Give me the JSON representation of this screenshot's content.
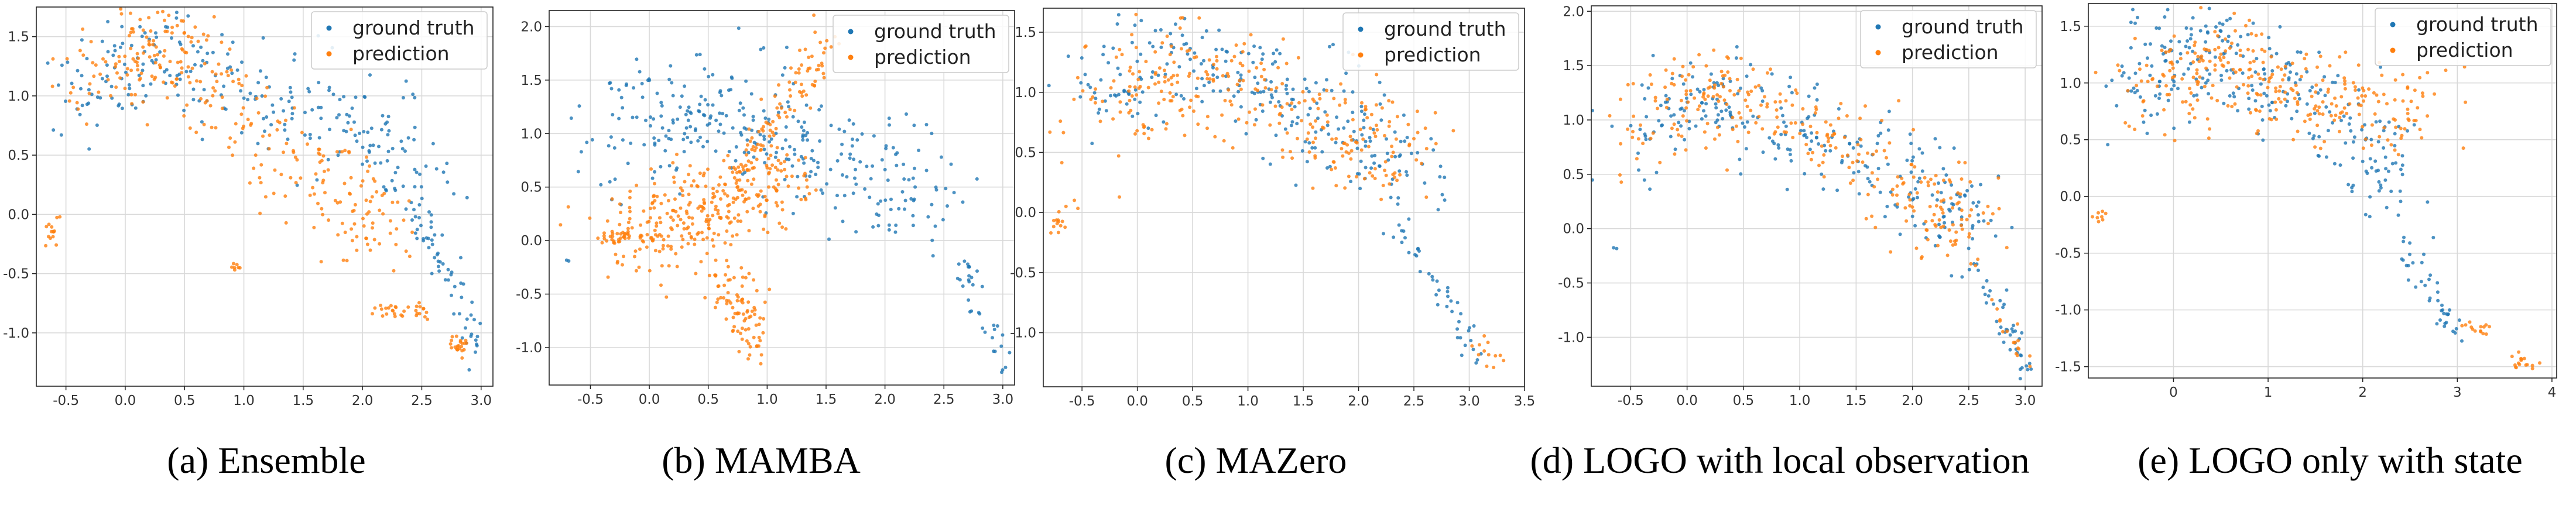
{
  "colors": {
    "ground_truth": "#1f77b4",
    "prediction": "#ff7f0e",
    "grid": "#d9d9d9",
    "axis": "#222222"
  },
  "chart_data": [
    {
      "type": "scatter",
      "caption": "(a) Ensemble",
      "xlim": [
        -0.75,
        3.1
      ],
      "ylim": [
        -1.45,
        1.75
      ],
      "xticks": [
        "-0.5",
        "0.0",
        "0.5",
        "1.0",
        "1.5",
        "2.0",
        "2.5",
        "3.0"
      ],
      "yticks": [
        "-1.0",
        "-0.5",
        "0.0",
        "0.5",
        "1.0",
        "1.5"
      ],
      "legend": {
        "entries": [
          "ground truth",
          "prediction"
        ],
        "position": "top-right"
      },
      "series": [
        {
          "name": "ground truth",
          "clusters": [
            {
              "x": [
                -0.5,
                0.0,
                0.4,
                0.9,
                1.4,
                1.9,
                2.3,
                2.5
              ],
              "y": [
                0.95,
                1.2,
                1.3,
                1.1,
                0.9,
                0.7,
                0.5,
                0.3
              ],
              "n": 260,
              "spread": [
                0.22,
                0.24
              ]
            },
            {
              "x": [
                2.45,
                2.7,
                2.85,
                3.0
              ],
              "y": [
                0.1,
                -0.4,
                -0.8,
                -1.25
              ],
              "n": 45,
              "spread": [
                0.05,
                0.06
              ]
            },
            {
              "x": [
                2.5,
                2.8
              ],
              "y": [
                -0.15,
                -0.65
              ],
              "n": 12,
              "spread": [
                0.04,
                0.04
              ]
            }
          ]
        },
        {
          "name": "prediction",
          "clusters": [
            {
              "x": [
                -0.3,
                0.1,
                0.4,
                0.8,
                1.3,
                1.8,
                2.2
              ],
              "y": [
                1.05,
                1.4,
                1.45,
                1.05,
                0.55,
                0.15,
                -0.2
              ],
              "n": 300,
              "spread": [
                0.2,
                0.22
              ]
            },
            {
              "x": [
                -0.65,
                -0.55
              ],
              "y": [
                -0.2,
                -0.1
              ],
              "n": 14,
              "spread": [
                0.03,
                0.05
              ]
            },
            {
              "x": [
                0.9,
                0.95
              ],
              "y": [
                -0.44,
                -0.46
              ],
              "n": 7,
              "spread": [
                0.03,
                0.02
              ]
            },
            {
              "x": [
                2.1,
                2.3,
                2.55
              ],
              "y": [
                -0.8,
                -0.83,
                -0.83
              ],
              "n": 30,
              "spread": [
                0.05,
                0.03
              ]
            },
            {
              "x": [
                2.75,
                2.85
              ],
              "y": [
                -1.05,
                -1.15
              ],
              "n": 22,
              "spread": [
                0.04,
                0.04
              ]
            }
          ]
        }
      ]
    },
    {
      "type": "scatter",
      "caption": "(b) MAMBA",
      "xlim": [
        -0.85,
        3.1
      ],
      "ylim": [
        -1.35,
        2.15
      ],
      "xticks": [
        "-0.5",
        "0.0",
        "0.5",
        "1.0",
        "1.5",
        "2.0",
        "2.5",
        "3.0"
      ],
      "yticks": [
        "-1.0",
        "-0.5",
        "0.0",
        "0.5",
        "1.0",
        "1.5",
        "2.0"
      ],
      "legend": {
        "entries": [
          "ground truth",
          "prediction"
        ],
        "position": "top-right"
      },
      "series": [
        {
          "name": "ground truth",
          "clusters": [
            {
              "x": [
                -0.4,
                0.1,
                0.5,
                1.0,
                1.6,
                2.1,
                2.5
              ],
              "y": [
                0.85,
                1.1,
                1.2,
                1.0,
                0.7,
                0.45,
                0.3
              ],
              "n": 320,
              "spread": [
                0.22,
                0.28
              ]
            },
            {
              "x": [
                2.6,
                2.8,
                3.0
              ],
              "y": [
                -0.1,
                -0.6,
                -1.2
              ],
              "n": 35,
              "spread": [
                0.05,
                0.07
              ]
            },
            {
              "x": [
                -0.7
              ],
              "y": [
                -0.2
              ],
              "n": 2,
              "spread": [
                0.02,
                0.02
              ]
            }
          ]
        },
        {
          "name": "prediction",
          "clusters": [
            {
              "x": [
                -0.3,
                0.1,
                0.5,
                0.8,
                1.1
              ],
              "y": [
                0.0,
                0.2,
                0.35,
                0.5,
                0.6
              ],
              "n": 320,
              "spread": [
                0.2,
                0.22
              ]
            },
            {
              "x": [
                0.8,
                1.1,
                1.3,
                1.5
              ],
              "y": [
                0.7,
                1.1,
                1.5,
                1.9
              ],
              "n": 80,
              "spread": [
                0.08,
                0.1
              ]
            },
            {
              "x": [
                0.6,
                0.8,
                0.9
              ],
              "y": [
                -0.3,
                -0.6,
                -1.0
              ],
              "n": 90,
              "spread": [
                0.1,
                0.12
              ]
            },
            {
              "x": [
                -0.4,
                -0.2
              ],
              "y": [
                0.0,
                0.05
              ],
              "n": 25,
              "spread": [
                0.06,
                0.03
              ]
            }
          ]
        }
      ]
    },
    {
      "type": "scatter",
      "caption": "(c) MAZero",
      "xlim": [
        -0.85,
        3.5
      ],
      "ylim": [
        -1.45,
        1.7
      ],
      "xticks": [
        "-0.5",
        "0.0",
        "0.5",
        "1.0",
        "1.5",
        "2.0",
        "2.5",
        "3.0",
        "3.5"
      ],
      "yticks": [
        "-1.0",
        "-0.5",
        "0.0",
        "0.5",
        "1.0",
        "1.5"
      ],
      "legend": {
        "entries": [
          "ground truth",
          "prediction"
        ],
        "position": "top-right"
      },
      "series": [
        {
          "name": "ground truth",
          "clusters": [
            {
              "x": [
                -0.5,
                0.0,
                0.3,
                0.8,
                1.3,
                1.8,
                2.2,
                2.4
              ],
              "y": [
                0.85,
                1.2,
                1.35,
                1.1,
                0.95,
                0.75,
                0.55,
                0.3
              ],
              "n": 270,
              "spread": [
                0.22,
                0.25
              ]
            },
            {
              "x": [
                2.4,
                2.7,
                2.9,
                3.1
              ],
              "y": [
                -0.2,
                -0.55,
                -0.9,
                -1.3
              ],
              "n": 40,
              "spread": [
                0.05,
                0.07
              ]
            }
          ]
        },
        {
          "name": "prediction",
          "clusters": [
            {
              "x": [
                -0.4,
                0.0,
                0.3,
                0.8,
                1.3,
                1.8,
                2.2,
                2.4
              ],
              "y": [
                0.8,
                1.1,
                1.2,
                1.05,
                0.9,
                0.75,
                0.6,
                0.5
              ],
              "n": 290,
              "spread": [
                0.22,
                0.24
              ]
            },
            {
              "x": [
                -0.75,
                -0.7,
                -0.6
              ],
              "y": [
                -0.2,
                -0.05,
                0.1
              ],
              "n": 15,
              "spread": [
                0.03,
                0.05
              ]
            },
            {
              "x": [
                3.0,
                3.3
              ],
              "y": [
                -1.0,
                -1.3
              ],
              "n": 12,
              "spread": [
                0.04,
                0.06
              ]
            }
          ]
        }
      ]
    },
    {
      "type": "scatter",
      "caption": "(d) LOGO with local observation",
      "xlim": [
        -0.85,
        3.15
      ],
      "ylim": [
        -1.45,
        2.05
      ],
      "xticks": [
        "-0.5",
        "0.0",
        "0.5",
        "1.0",
        "1.5",
        "2.0",
        "2.5",
        "3.0"
      ],
      "yticks": [
        "-1.0",
        "-0.5",
        "0.0",
        "0.5",
        "1.0",
        "1.5",
        "2.0"
      ],
      "legend": {
        "entries": [
          "ground truth",
          "prediction"
        ],
        "position": "top-right"
      },
      "series": [
        {
          "name": "ground truth",
          "clusters": [
            {
              "x": [
                -0.5,
                0.0,
                0.4,
                0.9,
                1.4,
                1.9,
                2.3,
                2.5
              ],
              "y": [
                0.75,
                1.1,
                1.2,
                1.0,
                0.75,
                0.5,
                0.25,
                0.05
              ],
              "n": 270,
              "spread": [
                0.22,
                0.23
              ]
            },
            {
              "x": [
                2.5,
                2.7,
                2.9,
                3.0
              ],
              "y": [
                -0.2,
                -0.6,
                -1.0,
                -1.3
              ],
              "n": 40,
              "spread": [
                0.05,
                0.07
              ]
            },
            {
              "x": [
                -0.65
              ],
              "y": [
                -0.18
              ],
              "n": 2,
              "spread": [
                0.01,
                0.01
              ]
            }
          ]
        },
        {
          "name": "prediction",
          "clusters": [
            {
              "x": [
                -0.4,
                0.0,
                0.3,
                0.8,
                1.3,
                1.8,
                2.2,
                2.5
              ],
              "y": [
                0.8,
                1.15,
                1.3,
                1.05,
                0.8,
                0.5,
                0.2,
                -0.1
              ],
              "n": 290,
              "spread": [
                0.21,
                0.22
              ]
            },
            {
              "x": [
                2.7,
                2.9,
                3.0
              ],
              "y": [
                -0.7,
                -1.0,
                -1.2
              ],
              "n": 16,
              "spread": [
                0.04,
                0.06
              ]
            }
          ]
        }
      ]
    },
    {
      "type": "scatter",
      "caption": "(e) LOGO only with state",
      "xlim": [
        -0.9,
        4.05
      ],
      "ylim": [
        -1.6,
        1.7
      ],
      "xticks": [
        "0",
        "1",
        "2",
        "3",
        "4"
      ],
      "yticks": [
        "-1.5",
        "-1.0",
        "-0.5",
        "0.0",
        "0.5",
        "1.0",
        "1.5"
      ],
      "legend": {
        "entries": [
          "ground truth",
          "prediction"
        ],
        "position": "top-right"
      },
      "series": [
        {
          "name": "ground truth",
          "clusters": [
            {
              "x": [
                -0.5,
                0.0,
                0.3,
                0.8,
                1.3,
                1.8,
                2.2,
                2.5
              ],
              "y": [
                0.85,
                1.2,
                1.35,
                1.05,
                0.85,
                0.6,
                0.35,
                0.1
              ],
              "n": 270,
              "spread": [
                0.25,
                0.24
              ]
            },
            {
              "x": [
                2.4,
                2.6,
                2.8,
                3.0
              ],
              "y": [
                -0.4,
                -0.7,
                -1.0,
                -1.25
              ],
              "n": 40,
              "spread": [
                0.06,
                0.06
              ]
            }
          ]
        },
        {
          "name": "prediction",
          "clusters": [
            {
              "x": [
                -0.3,
                0.2,
                0.6,
                1.1,
                1.6,
                2.1,
                2.5
              ],
              "y": [
                0.8,
                1.2,
                1.15,
                0.95,
                0.85,
                0.8,
                0.75
              ],
              "n": 290,
              "spread": [
                0.25,
                0.2
              ]
            },
            {
              "x": [
                -0.8,
                -0.75
              ],
              "y": [
                -0.22,
                -0.15
              ],
              "n": 8,
              "spread": [
                0.03,
                0.04
              ]
            },
            {
              "x": [
                3.1,
                3.3
              ],
              "y": [
                -1.15,
                -1.2
              ],
              "n": 14,
              "spread": [
                0.06,
                0.04
              ]
            },
            {
              "x": [
                3.6,
                3.75
              ],
              "y": [
                -1.45,
                -1.5
              ],
              "n": 16,
              "spread": [
                0.05,
                0.03
              ]
            }
          ]
        }
      ]
    }
  ]
}
